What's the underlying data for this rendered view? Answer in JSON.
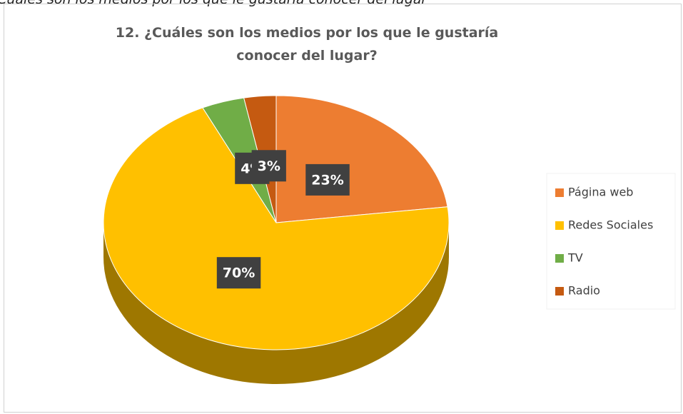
{
  "caption": "¿Cuáles son los medios por los que le gustaría conocer del lugar",
  "chart_data": {
    "type": "pie",
    "title": "12. ¿Cuáles son los medios por los que le gustaría conocer del lugar?",
    "categories": [
      "Página web",
      "Redes Sociales",
      "TV",
      "Radio"
    ],
    "values": [
      23,
      70,
      4,
      3
    ],
    "value_labels": [
      "23%",
      "70%",
      "4%",
      "3%"
    ],
    "colors": [
      "#ed7d31",
      "#ffc000",
      "#70ad47",
      "#c55a11"
    ],
    "legend": "right"
  }
}
